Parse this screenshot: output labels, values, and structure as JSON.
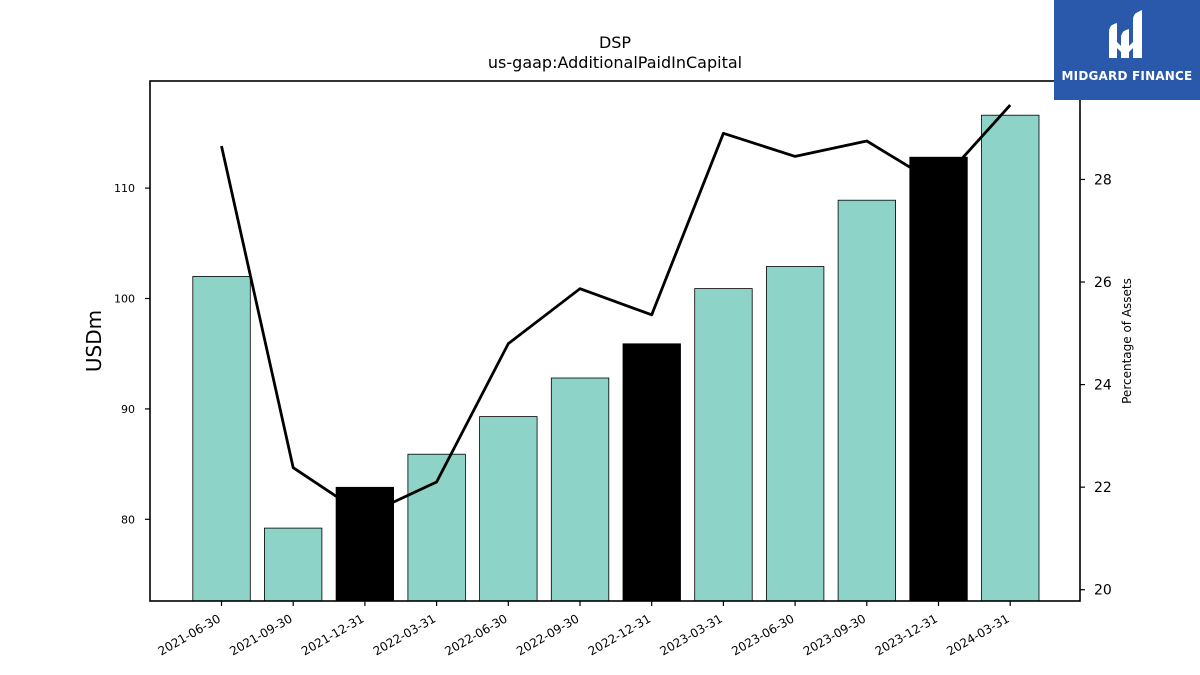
{
  "brand": {
    "name": "MIDGARD FINANCE",
    "background": "#2a58ab"
  },
  "chart_data": {
    "type": "bar",
    "title": "DSP",
    "subtitle": "us-gaap:AdditionalPaidInCapital",
    "ylabel": "USDm",
    "y2label": "Percentage of Assets",
    "categories": [
      "2021-06-30",
      "2021-09-30",
      "2021-12-31",
      "2022-03-31",
      "2022-06-30",
      "2022-09-30",
      "2022-12-31",
      "2023-03-31",
      "2023-06-30",
      "2023-09-30",
      "2023-12-31",
      "2024-03-31"
    ],
    "series": [
      {
        "type": "bar",
        "values": [
          102.0,
          79.2,
          82.9,
          85.9,
          89.3,
          92.8,
          95.9,
          100.9,
          102.9,
          108.9,
          112.8,
          116.6
        ],
        "highlight": [
          false,
          false,
          true,
          false,
          false,
          false,
          true,
          false,
          false,
          false,
          true,
          false
        ],
        "color": "#8dd3c7",
        "highlight_color": "#000000"
      },
      {
        "type": "line",
        "axis": "right",
        "values": [
          28.65,
          22.38,
          21.45,
          22.1,
          24.8,
          25.87,
          25.36,
          28.9,
          28.45,
          28.75,
          27.9,
          29.45
        ],
        "color": "#000000"
      }
    ],
    "ylim": [
      72.6,
      119.7
    ],
    "yticks": [
      80,
      90,
      100,
      110
    ],
    "y2lim": [
      19.78,
      29.92
    ],
    "y2ticks": [
      20,
      22,
      24,
      26,
      28
    ],
    "grid": false,
    "legend": "none"
  }
}
